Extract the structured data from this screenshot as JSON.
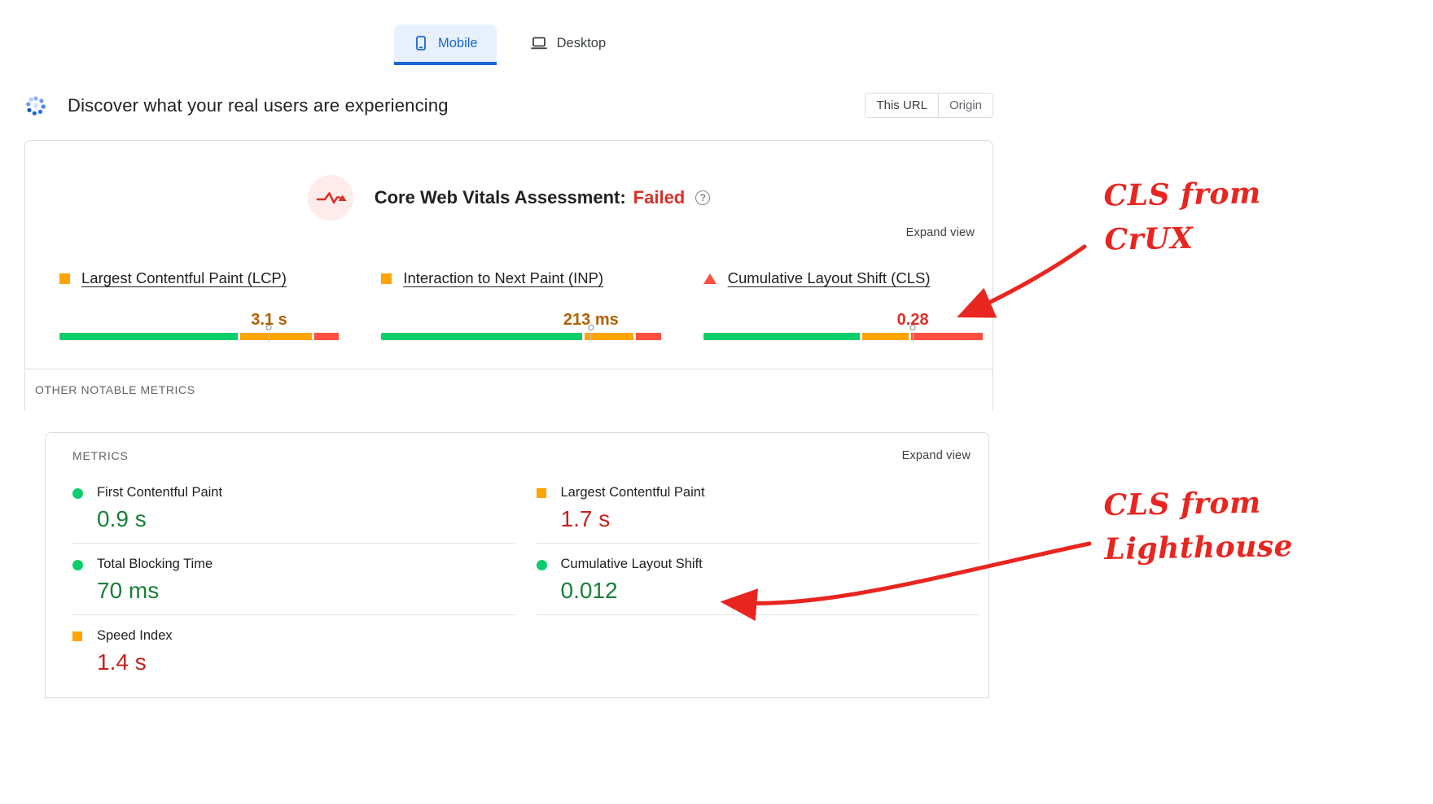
{
  "colors": {
    "green": "#0cce6b",
    "orange": "#ffa400",
    "red": "#ff4e42",
    "failed_red": "#d93025",
    "blue": "#1967d2",
    "blue_bg": "#e8f0fe",
    "annotation_red": "#e8251f",
    "border": "#dadce0",
    "text_dark": "#202124",
    "text_gray": "#5f6368"
  },
  "device_tabs": [
    {
      "label": "Mobile",
      "selected": true,
      "icon": "smartphone-icon"
    },
    {
      "label": "Desktop",
      "selected": false,
      "icon": "laptop-icon"
    }
  ],
  "field_section": {
    "heading": "Discover what your real users are experiencing",
    "scope_toggle": [
      {
        "label": "This URL",
        "selected": true
      },
      {
        "label": "Origin",
        "selected": false
      }
    ],
    "assessment_title": "Core Web Vitals Assessment:",
    "assessment_status": "Failed",
    "expand_view_label": "Expand view",
    "metrics": [
      {
        "name": "Largest Contentful Paint (LCP)",
        "value": "3.1 s",
        "bullet": "square",
        "value_color": "#b06000",
        "marker_pct": 75,
        "distribution_pct": [
          65,
          26,
          9
        ]
      },
      {
        "name": "Interaction to Next Paint (INP)",
        "value": "213 ms",
        "bullet": "square",
        "value_color": "#b06000",
        "marker_pct": 75,
        "distribution_pct": [
          73,
          18,
          9
        ]
      },
      {
        "name": "Cumulative Layout Shift (CLS)",
        "value": "0.28",
        "bullet": "triangle",
        "value_color": "#d93025",
        "marker_pct": 75,
        "distribution_pct": [
          57,
          17,
          26
        ]
      }
    ],
    "other_metrics_label": "OTHER NOTABLE METRICS"
  },
  "lab_section": {
    "heading": "METRICS",
    "expand_view_label": "Expand view",
    "columns": [
      {
        "metrics": [
          {
            "name": "First Contentful Paint",
            "value": "0.9 s",
            "bullet": "circle",
            "value_color": "#188038"
          },
          {
            "name": "Total Blocking Time",
            "value": "70 ms",
            "bullet": "circle",
            "value_color": "#188038"
          },
          {
            "name": "Speed Index",
            "value": "1.4 s",
            "bullet": "square",
            "value_color": "#c5221f"
          }
        ]
      },
      {
        "metrics": [
          {
            "name": "Largest Contentful Paint",
            "value": "1.7 s",
            "bullet": "square",
            "value_color": "#c5221f"
          },
          {
            "name": "Cumulative Layout Shift",
            "value": "0.012",
            "bullet": "circle",
            "value_color": "#188038"
          }
        ]
      }
    ]
  },
  "annotations": [
    {
      "lines": [
        "CLS from",
        "CrUX"
      ]
    },
    {
      "lines": [
        "CLS from",
        "Lighthouse"
      ]
    }
  ]
}
